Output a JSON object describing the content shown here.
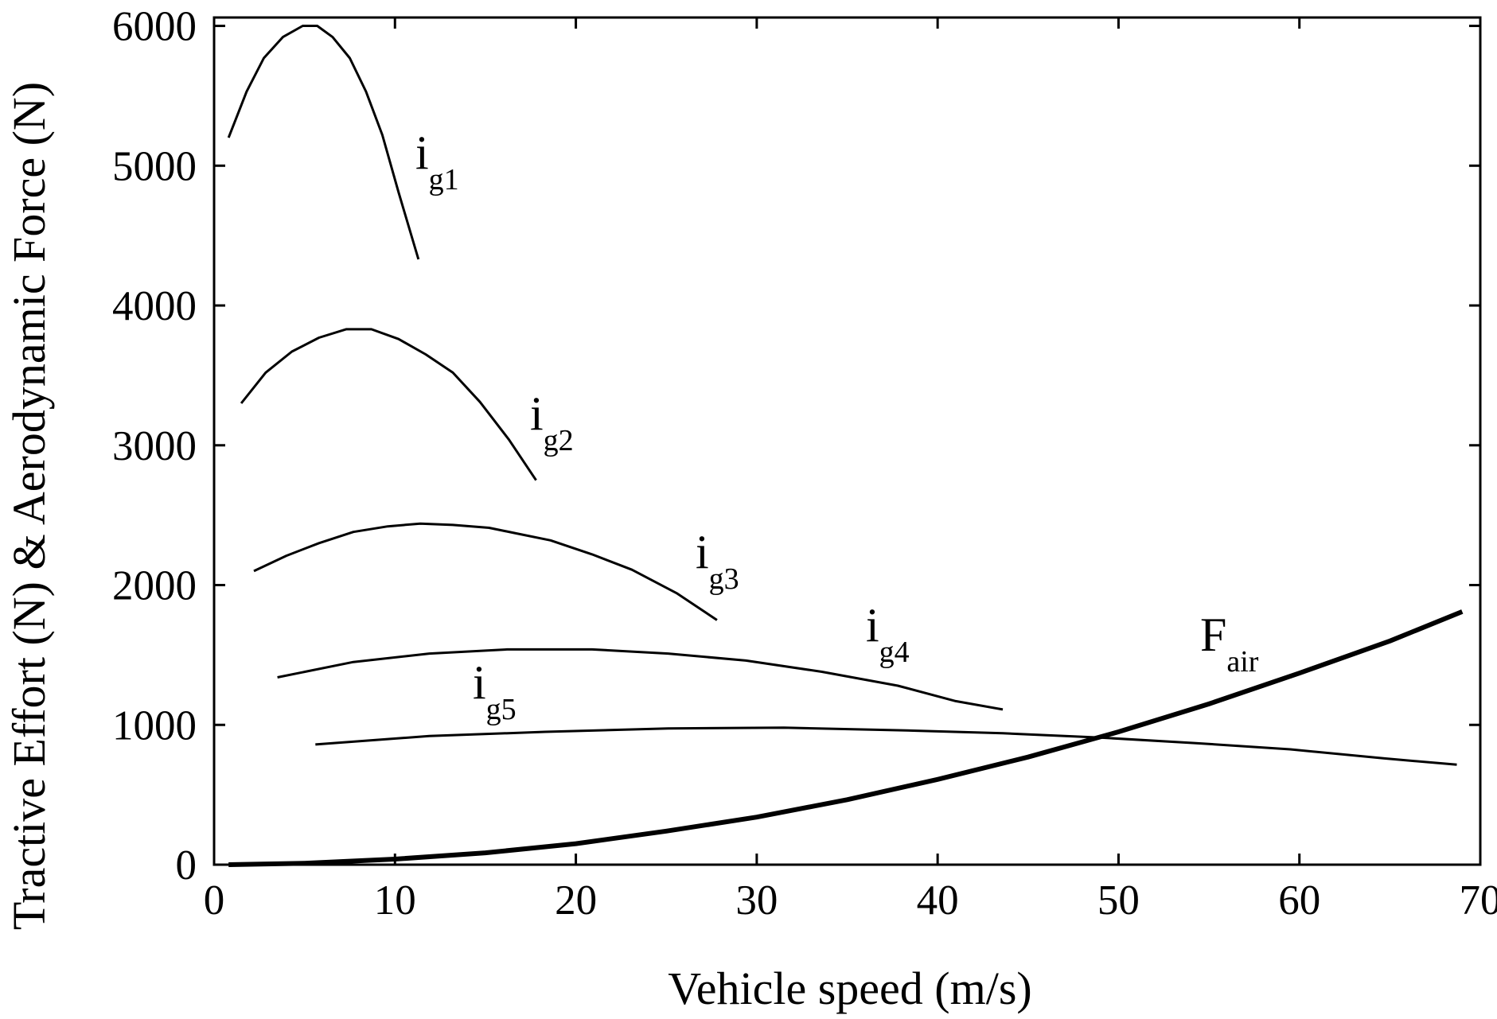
{
  "chart_data": {
    "type": "line",
    "x_label": "Vehicle speed (m/s)",
    "y_label": "Tractive Effort (N) & Aerodynamic Force (N)",
    "xlim": [
      0,
      70
    ],
    "ylim": [
      0,
      6060
    ],
    "xticks": [
      0,
      10,
      20,
      30,
      40,
      50,
      60,
      70
    ],
    "yticks": [
      0,
      1000,
      2000,
      3000,
      4000,
      5000,
      6000
    ],
    "grid": false,
    "series": [
      {
        "label": {
          "main": "i",
          "sub": "g1"
        },
        "color": "#000000",
        "width": 3,
        "x": [
          0.8,
          1.8,
          2.75,
          3.8,
          4.9,
          5.7,
          6.55,
          7.5,
          8.4,
          9.3,
          10.2,
          11.3
        ],
        "values": [
          5200,
          5530,
          5770,
          5920,
          6000,
          6000,
          5920,
          5770,
          5530,
          5220,
          4810,
          4330
        ]
      },
      {
        "label": {
          "main": "i",
          "sub": "g2"
        },
        "color": "#000000",
        "width": 3,
        "x": [
          1.5,
          2.85,
          4.3,
          5.8,
          7.3,
          8.7,
          10.2,
          11.7,
          13.2,
          14.7,
          16.3,
          17.8
        ],
        "values": [
          3300,
          3520,
          3670,
          3770,
          3830,
          3830,
          3760,
          3650,
          3520,
          3310,
          3040,
          2750
        ]
      },
      {
        "label": {
          "main": "i",
          "sub": "g3"
        },
        "color": "#000000",
        "width": 3,
        "x": [
          2.2,
          4.0,
          5.8,
          7.7,
          9.6,
          11.4,
          13.2,
          15.2,
          16.7,
          18.6,
          20.9,
          23.1,
          25.6,
          27.8
        ],
        "values": [
          2100,
          2210,
          2300,
          2380,
          2420,
          2440,
          2430,
          2410,
          2370,
          2320,
          2220,
          2110,
          1940,
          1750
        ]
      },
      {
        "label": {
          "main": "i",
          "sub": "g4"
        },
        "color": "#000000",
        "width": 3,
        "x": [
          3.5,
          7.7,
          11.9,
          16.2,
          20.9,
          25.1,
          29.4,
          33.6,
          37.8,
          41.0,
          43.6
        ],
        "values": [
          1340,
          1450,
          1510,
          1540,
          1540,
          1510,
          1460,
          1380,
          1280,
          1170,
          1110
        ]
      },
      {
        "label": {
          "main": "i",
          "sub": "g5"
        },
        "color": "#000000",
        "width": 3,
        "x": [
          5.6,
          11.9,
          18.3,
          25.1,
          31.5,
          38.3,
          43.6,
          48.9,
          54.2,
          59.5,
          64.7,
          68.7
        ],
        "values": [
          860,
          920,
          950,
          975,
          980,
          960,
          940,
          910,
          870,
          825,
          760,
          715
        ]
      },
      {
        "label": {
          "main": "F",
          "sub": "air"
        },
        "color": "#000000",
        "width": 6,
        "x": [
          0.8,
          5,
          10,
          15,
          20,
          25,
          30,
          35,
          40,
          45,
          50,
          55,
          60,
          65,
          69
        ],
        "values": [
          0,
          10,
          40,
          85,
          150,
          240,
          340,
          465,
          610,
          770,
          950,
          1150,
          1370,
          1600,
          1810
        ]
      }
    ]
  }
}
